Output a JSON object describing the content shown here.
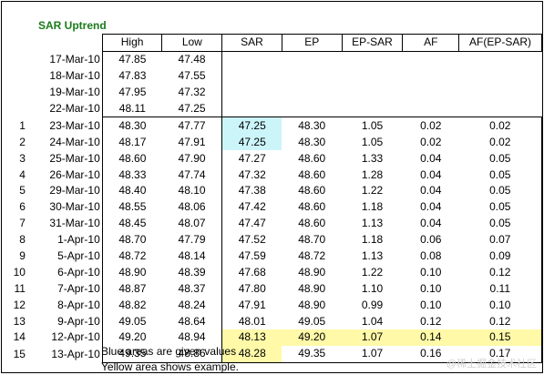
{
  "title": "SAR Uptrend",
  "headers": [
    "High",
    "Low",
    "SAR",
    "EP",
    "EP-SAR",
    "AF",
    "AF(EP-SAR)"
  ],
  "pre_rows": [
    {
      "date": "17-Mar-10",
      "high": "47.85",
      "low": "47.48"
    },
    {
      "date": "18-Mar-10",
      "high": "47.83",
      "low": "47.55"
    },
    {
      "date": "19-Mar-10",
      "high": "47.95",
      "low": "47.32"
    },
    {
      "date": "22-Mar-10",
      "high": "48.11",
      "low": "47.25"
    }
  ],
  "rows": [
    {
      "num": "1",
      "date": "23-Mar-10",
      "high": "48.30",
      "low": "47.77",
      "sar": "47.25",
      "ep": "48.30",
      "epsar": "1.05",
      "af": "0.02",
      "afep": "0.02"
    },
    {
      "num": "2",
      "date": "24-Mar-10",
      "high": "48.17",
      "low": "47.91",
      "sar": "47.25",
      "ep": "48.30",
      "epsar": "1.05",
      "af": "0.02",
      "afep": "0.02"
    },
    {
      "num": "3",
      "date": "25-Mar-10",
      "high": "48.60",
      "low": "47.90",
      "sar": "47.27",
      "ep": "48.60",
      "epsar": "1.33",
      "af": "0.04",
      "afep": "0.05"
    },
    {
      "num": "4",
      "date": "26-Mar-10",
      "high": "48.33",
      "low": "47.74",
      "sar": "47.32",
      "ep": "48.60",
      "epsar": "1.28",
      "af": "0.04",
      "afep": "0.05"
    },
    {
      "num": "5",
      "date": "29-Mar-10",
      "high": "48.40",
      "low": "48.10",
      "sar": "47.38",
      "ep": "48.60",
      "epsar": "1.22",
      "af": "0.04",
      "afep": "0.05"
    },
    {
      "num": "6",
      "date": "30-Mar-10",
      "high": "48.55",
      "low": "48.06",
      "sar": "47.42",
      "ep": "48.60",
      "epsar": "1.18",
      "af": "0.04",
      "afep": "0.05"
    },
    {
      "num": "7",
      "date": "31-Mar-10",
      "high": "48.45",
      "low": "48.07",
      "sar": "47.47",
      "ep": "48.60",
      "epsar": "1.13",
      "af": "0.04",
      "afep": "0.05"
    },
    {
      "num": "8",
      "date": "1-Apr-10",
      "high": "48.70",
      "low": "47.79",
      "sar": "47.52",
      "ep": "48.70",
      "epsar": "1.18",
      "af": "0.06",
      "afep": "0.07"
    },
    {
      "num": "9",
      "date": "5-Apr-10",
      "high": "48.72",
      "low": "48.14",
      "sar": "47.59",
      "ep": "48.72",
      "epsar": "1.13",
      "af": "0.08",
      "afep": "0.09"
    },
    {
      "num": "10",
      "date": "6-Apr-10",
      "high": "48.90",
      "low": "48.39",
      "sar": "47.68",
      "ep": "48.90",
      "epsar": "1.22",
      "af": "0.10",
      "afep": "0.12"
    },
    {
      "num": "11",
      "date": "7-Apr-10",
      "high": "48.87",
      "low": "48.37",
      "sar": "47.80",
      "ep": "48.90",
      "epsar": "1.10",
      "af": "0.10",
      "afep": "0.11"
    },
    {
      "num": "12",
      "date": "8-Apr-10",
      "high": "48.82",
      "low": "48.24",
      "sar": "47.91",
      "ep": "48.90",
      "epsar": "0.99",
      "af": "0.10",
      "afep": "0.10"
    },
    {
      "num": "13",
      "date": "9-Apr-10",
      "high": "49.05",
      "low": "48.64",
      "sar": "48.01",
      "ep": "49.05",
      "epsar": "1.04",
      "af": "0.12",
      "afep": "0.12"
    },
    {
      "num": "14",
      "date": "12-Apr-10",
      "high": "49.20",
      "low": "48.94",
      "sar": "48.13",
      "ep": "49.20",
      "epsar": "1.07",
      "af": "0.14",
      "afep": "0.15"
    },
    {
      "num": "15",
      "date": "13-Apr-10",
      "high": "49.35",
      "low": "48.86",
      "sar": "48.28",
      "ep": "49.35",
      "epsar": "1.07",
      "af": "0.16",
      "afep": "0.17"
    }
  ],
  "highlights": {
    "blue_cells": [
      {
        "row": 0,
        "col": "sar"
      },
      {
        "row": 1,
        "col": "sar"
      }
    ],
    "yellow_cells": [
      {
        "row": 13,
        "col": "sar"
      },
      {
        "row": 13,
        "col": "ep"
      },
      {
        "row": 13,
        "col": "epsar"
      },
      {
        "row": 13,
        "col": "af"
      },
      {
        "row": 13,
        "col": "afep"
      },
      {
        "row": 14,
        "col": "sar"
      }
    ],
    "blue_color": "#ccf5fa",
    "yellow_color": "#fff9a8",
    "title_color": "#1a7a1a"
  },
  "notes": {
    "note1": "Blue areas are given values",
    "note2": "Yellow area shows example."
  },
  "watermark": "@稀土掘金技术社区"
}
